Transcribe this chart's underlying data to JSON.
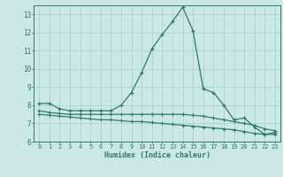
{
  "x": [
    0,
    1,
    2,
    3,
    4,
    5,
    6,
    7,
    8,
    9,
    10,
    11,
    12,
    13,
    14,
    15,
    16,
    17,
    18,
    19,
    20,
    21,
    22,
    23
  ],
  "line1": [
    8.1,
    8.1,
    7.8,
    7.7,
    7.7,
    7.7,
    7.7,
    7.7,
    8.0,
    8.7,
    9.8,
    11.1,
    11.9,
    12.6,
    13.4,
    12.1,
    8.9,
    8.7,
    8.0,
    7.2,
    7.3,
    6.8,
    6.4,
    6.5
  ],
  "line2": [
    7.7,
    7.6,
    7.55,
    7.5,
    7.5,
    7.5,
    7.5,
    7.5,
    7.5,
    7.5,
    7.5,
    7.5,
    7.5,
    7.5,
    7.5,
    7.45,
    7.4,
    7.3,
    7.2,
    7.1,
    7.0,
    6.9,
    6.7,
    6.6
  ],
  "line3": [
    7.5,
    7.45,
    7.4,
    7.35,
    7.3,
    7.25,
    7.2,
    7.2,
    7.15,
    7.1,
    7.1,
    7.05,
    7.0,
    6.95,
    6.9,
    6.85,
    6.8,
    6.75,
    6.7,
    6.65,
    6.55,
    6.45,
    6.4,
    6.4
  ],
  "line_color": "#2e7b6b",
  "bg_color": "#cce8e4",
  "grid_color": "#aed4ce",
  "xlabel": "Humidex (Indice chaleur)",
  "ylim": [
    6,
    13.5
  ],
  "xlim": [
    -0.5,
    23.5
  ],
  "yticks": [
    6,
    7,
    8,
    9,
    10,
    11,
    12,
    13
  ],
  "xticks": [
    0,
    1,
    2,
    3,
    4,
    5,
    6,
    7,
    8,
    9,
    10,
    11,
    12,
    13,
    14,
    15,
    16,
    17,
    18,
    19,
    20,
    21,
    22,
    23
  ]
}
